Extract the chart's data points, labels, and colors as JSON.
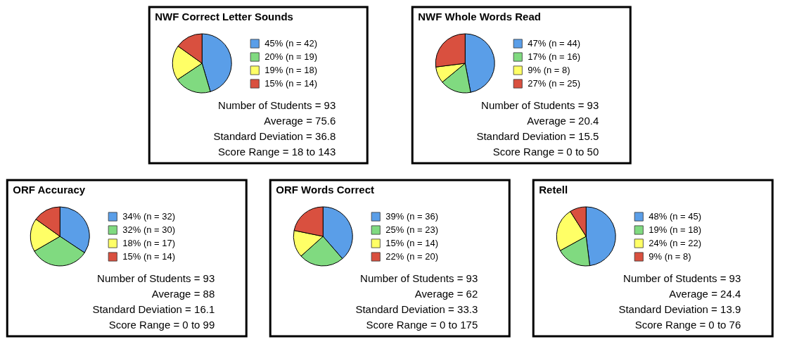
{
  "chart_data": [
    {
      "type": "pie",
      "title": "NWF Correct Letter Sounds",
      "categories": [
        "45%  (n = 42)",
        "20%  (n = 19)",
        "19%  (n = 18)",
        "15%  (n = 14)"
      ],
      "values": [
        45,
        20,
        19,
        15
      ],
      "colors": [
        "#5a9ee8",
        "#80da80",
        "#ffff66",
        "#d9503f"
      ],
      "legend": "right",
      "annotations": [
        "Number of Students = 93",
        "Average = 75.6",
        "Standard Deviation = 36.8",
        "Score Range = 18 to 143"
      ]
    },
    {
      "type": "pie",
      "title": "NWF Whole Words Read",
      "categories": [
        "47%  (n = 44)",
        "17%  (n = 16)",
        "9%  (n = 8)",
        "27%  (n = 25)"
      ],
      "values": [
        47,
        17,
        9,
        27
      ],
      "colors": [
        "#5a9ee8",
        "#80da80",
        "#ffff66",
        "#d9503f"
      ],
      "legend": "right",
      "annotations": [
        "Number of Students = 93",
        "Average = 20.4",
        "Standard Deviation = 15.5",
        "Score Range = 0 to 50"
      ]
    },
    {
      "type": "pie",
      "title": "ORF Accuracy",
      "categories": [
        "34%  (n = 32)",
        "32%  (n = 30)",
        "18%  (n = 17)",
        "15%  (n = 14)"
      ],
      "values": [
        34,
        32,
        18,
        15
      ],
      "colors": [
        "#5a9ee8",
        "#80da80",
        "#ffff66",
        "#d9503f"
      ],
      "legend": "right",
      "annotations": [
        "Number of Students = 93",
        "Average = 88",
        "Standard Deviation = 16.1",
        "Score Range = 0 to 99"
      ]
    },
    {
      "type": "pie",
      "title": "ORF Words Correct",
      "categories": [
        "39%  (n = 36)",
        "25%  (n = 23)",
        "15%  (n = 14)",
        "22%  (n = 20)"
      ],
      "values": [
        39,
        25,
        15,
        22
      ],
      "colors": [
        "#5a9ee8",
        "#80da80",
        "#ffff66",
        "#d9503f"
      ],
      "legend": "right",
      "annotations": [
        "Number of Students = 93",
        "Average = 62",
        "Standard Deviation = 33.3",
        "Score Range = 0 to 175"
      ]
    },
    {
      "type": "pie",
      "title": "Retell",
      "categories": [
        "48%  (n = 45)",
        "19%  (n = 18)",
        "24%  (n = 22)",
        "9%  (n = 8)"
      ],
      "values": [
        48,
        19,
        24,
        9
      ],
      "colors": [
        "#5a9ee8",
        "#80da80",
        "#ffff66",
        "#d9503f"
      ],
      "legend": "right",
      "annotations": [
        "Number of Students = 93",
        "Average = 24.4",
        "Standard Deviation = 13.9",
        "Score Range = 0 to 76"
      ]
    }
  ]
}
